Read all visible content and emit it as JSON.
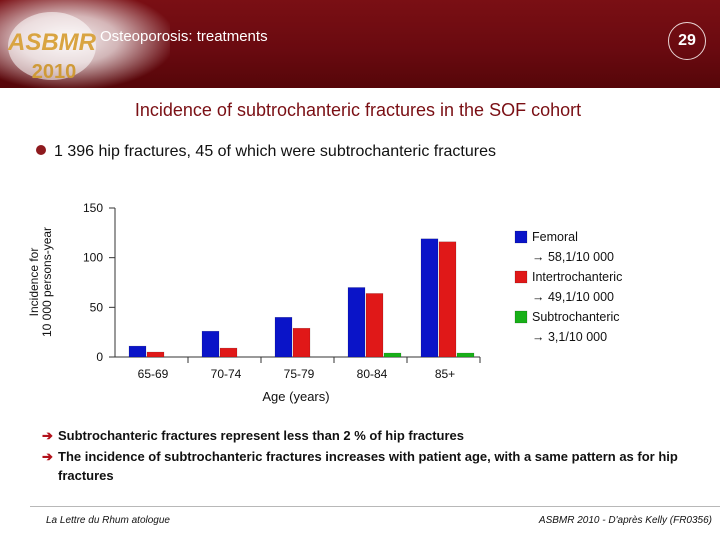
{
  "header": {
    "logo_text": "ASBMR",
    "logo_year": "2010",
    "title": "Osteoporosis: treatments",
    "page_number": "29",
    "colors": {
      "background": "#6a0a10",
      "logo": "#d9a441"
    }
  },
  "subtitle": "Incidence of subtrochanteric fractures in the SOF cohort",
  "bullet": "1 396 hip fractures,  45 of which were subtrochanteric  fractures",
  "chart_data": {
    "type": "bar",
    "categories": [
      "65-69",
      "70-74",
      "75-79",
      "80-84",
      "85+"
    ],
    "series": [
      {
        "name": "Femoral",
        "color": "#0a14c8",
        "values": [
          11,
          26,
          40,
          70,
          119
        ]
      },
      {
        "name": "Intertrochanteric",
        "color": "#e01818",
        "values": [
          5,
          9,
          29,
          64,
          116
        ]
      },
      {
        "name": "Subtrochanteric",
        "color": "#18b018",
        "values": [
          0,
          0,
          0,
          4,
          4
        ]
      }
    ],
    "legend_rates": [
      "→ 58,1/10 000",
      "→ 49,1/10 000",
      "→ 3,1/10 000"
    ],
    "yticks": [
      0,
      50,
      100,
      150
    ],
    "ylim": [
      0,
      150
    ],
    "ylabel_lines": [
      "Incidence for",
      "10 000 persons-year"
    ],
    "xlabel": "Age (years)",
    "legend_position": "right",
    "grid": false
  },
  "notes": [
    "Subtrochanteric fractures  represent less than  2 %  of hip fractures",
    "The incidence of subtrochanteric fractures increases with patient age, with a same pattern as  for  hip fractures"
  ],
  "footer": {
    "left": "La Lettre du Rhum atologue",
    "right": "ASBMR 2010 - D'après Kelly (FR0356)"
  }
}
